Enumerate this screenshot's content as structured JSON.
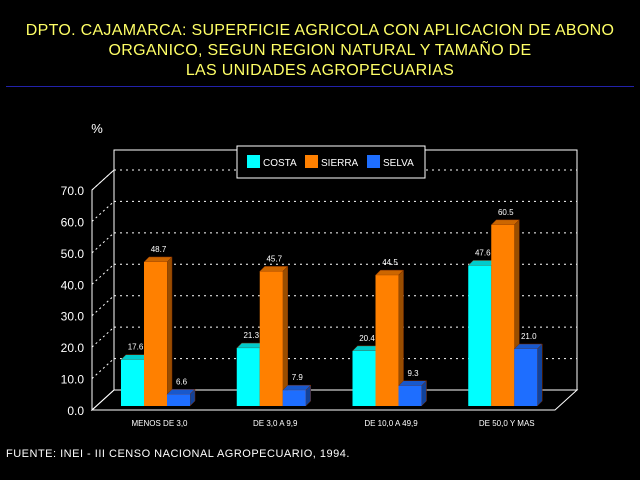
{
  "title_lines": [
    "DPTO. CAJAMARCA: SUPERFICIE AGRICOLA CON APLICACION DE ABONO",
    "ORGANICO, SEGUN REGION NATURAL Y TAMAÑO DE",
    "LAS UNIDADES AGROPECUARIAS"
  ],
  "source": "FUENTE: INEI - III CENSO NACIONAL AGROPECUARIO, 1994.",
  "colors": {
    "COSTA": "#00ffff",
    "SIERRA": "#ff8000",
    "SELVA": "#1e6eff",
    "title": "#ffff66"
  },
  "chart_data": {
    "type": "bar",
    "ylabel": "%",
    "ylim": [
      0,
      70
    ],
    "yticks": [
      "0.0",
      "10.0",
      "20.0",
      "30.0",
      "40.0",
      "50.0",
      "60.0",
      "70.0"
    ],
    "grid": true,
    "legend_position": "top-center",
    "categories": [
      "MENOS DE 3,0",
      "DE 3,0 A 9,9",
      "DE 10,0 A 49,9",
      "DE 50,0 Y MAS"
    ],
    "series": [
      {
        "name": "COSTA",
        "values": [
          17.6,
          21.3,
          20.4,
          47.6
        ],
        "labels": [
          "17.6",
          "21.3",
          "20.4",
          "47.6"
        ]
      },
      {
        "name": "SIERRA",
        "values": [
          48.7,
          45.7,
          44.5,
          60.5
        ],
        "labels": [
          "48.7",
          "45.7",
          "44.5",
          "60.5"
        ]
      },
      {
        "name": "SELVA",
        "values": [
          6.6,
          7.9,
          9.3,
          21.0
        ],
        "labels": [
          "6.6",
          "7.9",
          "9.3",
          "21.0"
        ]
      }
    ]
  }
}
